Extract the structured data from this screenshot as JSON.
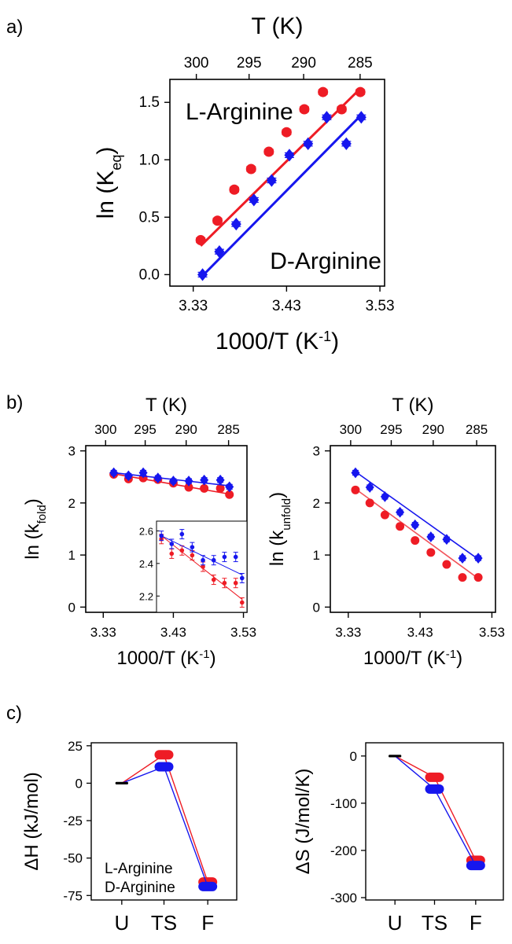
{
  "panel_letters": [
    "a)",
    "b)",
    "c)"
  ],
  "colors": {
    "l_arginine": "#ee1c25",
    "d_arginine": "#1616ee",
    "axis": "#000000"
  },
  "chart_data": [
    {
      "id": "a",
      "type": "scatter",
      "xlabel": "1000/T (K",
      "xlabel_sup": "-1",
      "xlabel_end": ")",
      "ylabel": "ln (K",
      "ylabel_sub": "eq",
      "ylabel_end": ")",
      "top_xlabel": "T (K)",
      "xlim": [
        3.305,
        3.535
      ],
      "ylim": [
        -0.1,
        1.7
      ],
      "xticks": [
        "3.33",
        "3.43",
        "3.53"
      ],
      "yticks": [
        "0.0",
        "0.5",
        "1.0",
        "1.5"
      ],
      "top_ticks": [
        "300",
        "295",
        "290",
        "285"
      ],
      "grid": false,
      "series": [
        {
          "name": "L-Arginine",
          "marker": "circle",
          "x": [
            3.338,
            3.356,
            3.374,
            3.392,
            3.411,
            3.43,
            3.449,
            3.469,
            3.489,
            3.509
          ],
          "y": [
            0.3,
            0.47,
            0.74,
            0.92,
            1.07,
            1.24,
            1.44,
            1.59,
            1.44,
            1.59
          ],
          "fit": [
            [
              3.338,
              0.25
            ],
            [
              3.509,
              1.62
            ]
          ]
        },
        {
          "name": "D-Arginine",
          "marker": "diamond",
          "x": [
            3.34,
            3.358,
            3.376,
            3.395,
            3.414,
            3.433,
            3.453,
            3.473,
            3.494,
            3.51
          ],
          "y": [
            0.0,
            0.2,
            0.44,
            0.65,
            0.82,
            1.04,
            1.14,
            1.37,
            1.14,
            1.37
          ],
          "fit": [
            [
              3.34,
              -0.01
            ],
            [
              3.51,
              1.39
            ]
          ]
        }
      ]
    },
    {
      "id": "b-left",
      "type": "scatter",
      "xlabel": "1000/T (K",
      "xlabel_sup": "-1",
      "xlabel_end": ")",
      "ylabel": "ln (k",
      "ylabel_sub": "fold",
      "ylabel_end": ")",
      "top_xlabel": "T (K)",
      "xlim": [
        3.305,
        3.535
      ],
      "ylim": [
        -0.1,
        3.1
      ],
      "xticks": [
        "3.33",
        "3.43",
        "3.53"
      ],
      "yticks": [
        "0",
        "1",
        "2",
        "3"
      ],
      "top_ticks": [
        "300",
        "295",
        "290",
        "285"
      ],
      "grid": false,
      "series": [
        {
          "name": "L-Arginine",
          "marker": "circle",
          "x": [
            3.345,
            3.366,
            3.387,
            3.408,
            3.43,
            3.452,
            3.474,
            3.497,
            3.51
          ],
          "y": [
            2.55,
            2.46,
            2.48,
            2.45,
            2.38,
            2.3,
            2.28,
            2.28,
            2.16
          ],
          "fit": [
            [
              3.345,
              2.56
            ],
            [
              3.51,
              2.17
            ]
          ]
        },
        {
          "name": "D-Arginine",
          "marker": "diamond",
          "x": [
            3.345,
            3.366,
            3.387,
            3.408,
            3.43,
            3.452,
            3.474,
            3.497,
            3.51
          ],
          "y": [
            2.58,
            2.52,
            2.58,
            2.48,
            2.42,
            2.42,
            2.44,
            2.44,
            2.31
          ],
          "fit": [
            [
              3.345,
              2.58
            ],
            [
              3.51,
              2.33
            ]
          ]
        }
      ],
      "inset": {
        "xlim": [
          3.335,
          3.52
        ],
        "ylim": [
          2.1,
          2.66
        ],
        "yticks": [
          "2.2",
          "2.4",
          "2.6"
        ],
        "series": [
          {
            "name": "L-Arginine",
            "x": [
              3.345,
              3.366,
              3.387,
              3.408,
              3.43,
              3.452,
              3.474,
              3.497,
              3.51
            ],
            "y": [
              2.55,
              2.46,
              2.48,
              2.45,
              2.38,
              2.3,
              2.28,
              2.28,
              2.16
            ],
            "fit": [
              [
                3.345,
                2.57
              ],
              [
                3.51,
                2.18
              ]
            ]
          },
          {
            "name": "D-Arginine",
            "x": [
              3.345,
              3.366,
              3.387,
              3.408,
              3.43,
              3.452,
              3.474,
              3.497,
              3.51
            ],
            "y": [
              2.57,
              2.52,
              2.58,
              2.5,
              2.42,
              2.42,
              2.44,
              2.44,
              2.31
            ],
            "fit": [
              [
                3.345,
                2.57
              ],
              [
                3.51,
                2.33
              ]
            ]
          }
        ]
      }
    },
    {
      "id": "b-right",
      "type": "scatter",
      "xlabel": "1000/T (K",
      "xlabel_sup": "-1",
      "xlabel_end": ")",
      "ylabel": "ln (k",
      "ylabel_sub": "unfold",
      "ylabel_end": ")",
      "top_xlabel": "T (K)",
      "xlim": [
        3.305,
        3.535
      ],
      "ylim": [
        -0.1,
        3.1
      ],
      "xticks": [
        "3.33",
        "3.43",
        "3.53"
      ],
      "yticks": [
        "0",
        "1",
        "2",
        "3"
      ],
      "top_ticks": [
        "300",
        "295",
        "290",
        "285"
      ],
      "grid": false,
      "series": [
        {
          "name": "L-Arginine",
          "marker": "circle",
          "x": [
            3.34,
            3.36,
            3.381,
            3.402,
            3.423,
            3.445,
            3.467,
            3.489,
            3.511
          ],
          "y": [
            2.25,
            2.0,
            1.77,
            1.55,
            1.28,
            1.05,
            0.82,
            0.57,
            0.57
          ],
          "fit": [
            [
              3.34,
              2.27
            ],
            [
              3.511,
              0.55
            ]
          ]
        },
        {
          "name": "D-Arginine",
          "marker": "diamond",
          "x": [
            3.34,
            3.36,
            3.381,
            3.402,
            3.423,
            3.445,
            3.467,
            3.489,
            3.511
          ],
          "y": [
            2.58,
            2.3,
            2.12,
            1.82,
            1.58,
            1.35,
            1.3,
            0.94,
            0.94
          ],
          "fit": [
            [
              3.34,
              2.6
            ],
            [
              3.511,
              0.92
            ]
          ]
        }
      ]
    },
    {
      "id": "c-left",
      "type": "line",
      "ylabel": "ΔH (kJ/mol)",
      "categories": [
        "U",
        "TS",
        "F"
      ],
      "ylim": [
        -78,
        27
      ],
      "yticks": [
        "25",
        "0",
        "-25",
        "-50",
        "-75"
      ],
      "ytick_values": [
        25,
        0,
        -25,
        -50,
        -75
      ],
      "legend_position": "bottom-left",
      "series": [
        {
          "name": "L-Arginine",
          "values": [
            0,
            19,
            -66
          ]
        },
        {
          "name": "D-Arginine",
          "values": [
            0,
            11,
            -69
          ]
        }
      ]
    },
    {
      "id": "c-right",
      "type": "line",
      "ylabel": "ΔS (J/mol/K)",
      "categories": [
        "U",
        "TS",
        "F"
      ],
      "ylim": [
        -305,
        28
      ],
      "yticks": [
        "0",
        "-100",
        "-200",
        "-300"
      ],
      "ytick_values": [
        0,
        -100,
        -200,
        -300
      ],
      "series": [
        {
          "name": "L-Arginine",
          "values": [
            0,
            -45,
            -221
          ]
        },
        {
          "name": "D-Arginine",
          "values": [
            0,
            -70,
            -232
          ]
        }
      ]
    }
  ]
}
